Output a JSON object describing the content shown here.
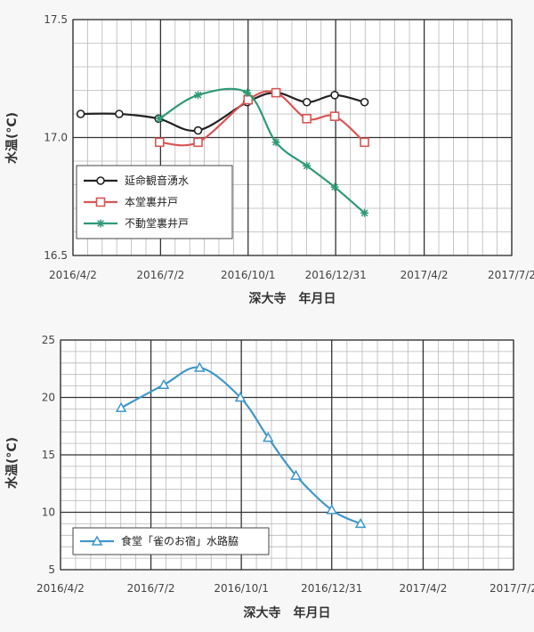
{
  "chart_data": [
    {
      "type": "line",
      "title": "",
      "xlabel": "深大寺　年月日",
      "ylabel": "水温(°C)",
      "ylim": [
        16.5,
        17.5
      ],
      "y_ticks": [
        "16.5",
        "17.0",
        "17.5"
      ],
      "x_ticks": [
        "2016/4/2",
        "2016/7/2",
        "2016/10/1",
        "2016/12/31",
        "2017/4/2",
        "2017/7/2"
      ],
      "x_range": [
        "2016/4/2",
        "2017/7/2"
      ],
      "grid": true,
      "legend_position": "bottom-left",
      "series": [
        {
          "name": "延命観音湧水",
          "color": "#222222",
          "marker": "circle",
          "points": [
            {
              "x": "2016/4/10",
              "y": 17.1
            },
            {
              "x": "2016/5/20",
              "y": 17.1
            },
            {
              "x": "2016/6/30",
              "y": 17.08
            },
            {
              "x": "2016/8/10",
              "y": 17.03
            },
            {
              "x": "2016/9/30",
              "y": 17.15
            },
            {
              "x": "2016/10/30",
              "y": 17.19
            },
            {
              "x": "2016/12/1",
              "y": 17.15
            },
            {
              "x": "2016/12/30",
              "y": 17.18
            },
            {
              "x": "2017/1/30",
              "y": 17.15
            }
          ]
        },
        {
          "name": "本堂裏井戸",
          "color": "#d95555",
          "marker": "square",
          "points": [
            {
              "x": "2016/7/1",
              "y": 16.98
            },
            {
              "x": "2016/8/10",
              "y": 16.98
            },
            {
              "x": "2016/10/1",
              "y": 17.16
            },
            {
              "x": "2016/10/30",
              "y": 17.19
            },
            {
              "x": "2016/12/1",
              "y": 17.08
            },
            {
              "x": "2016/12/30",
              "y": 17.09
            },
            {
              "x": "2017/1/30",
              "y": 16.98
            }
          ]
        },
        {
          "name": "不動堂裏井戸",
          "color": "#2e9a73",
          "marker": "asterisk",
          "points": [
            {
              "x": "2016/7/1",
              "y": 17.08
            },
            {
              "x": "2016/8/10",
              "y": 17.18
            },
            {
              "x": "2016/9/30",
              "y": 17.19
            },
            {
              "x": "2016/10/30",
              "y": 16.98
            },
            {
              "x": "2016/12/1",
              "y": 16.88
            },
            {
              "x": "2016/12/30",
              "y": 16.79
            },
            {
              "x": "2017/1/30",
              "y": 16.68
            }
          ]
        }
      ]
    },
    {
      "type": "line",
      "title": "",
      "xlabel": "深大寺　年月日",
      "ylabel": "水温(°C)",
      "ylim": [
        5,
        25
      ],
      "y_ticks": [
        "5",
        "10",
        "15",
        "20",
        "25"
      ],
      "x_ticks": [
        "2016/4/2",
        "2016/7/2",
        "2016/10/1",
        "2016/12/31",
        "2017/4/2",
        "2017/7/2"
      ],
      "x_range": [
        "2016/4/2",
        "2017/7/2"
      ],
      "grid": true,
      "legend_position": "bottom-left",
      "series": [
        {
          "name": "食堂「雀のお宿」水路脇",
          "color": "#3f97c9",
          "marker": "triangle",
          "points": [
            {
              "x": "2016/6/2",
              "y": 19.1
            },
            {
              "x": "2016/7/15",
              "y": 21.1
            },
            {
              "x": "2016/8/20",
              "y": 22.6
            },
            {
              "x": "2016/9/30",
              "y": 20.0
            },
            {
              "x": "2016/10/28",
              "y": 16.5
            },
            {
              "x": "2016/11/25",
              "y": 13.2
            },
            {
              "x": "2016/12/31",
              "y": 10.2
            },
            {
              "x": "2017/1/29",
              "y": 9.0
            }
          ]
        }
      ]
    }
  ]
}
